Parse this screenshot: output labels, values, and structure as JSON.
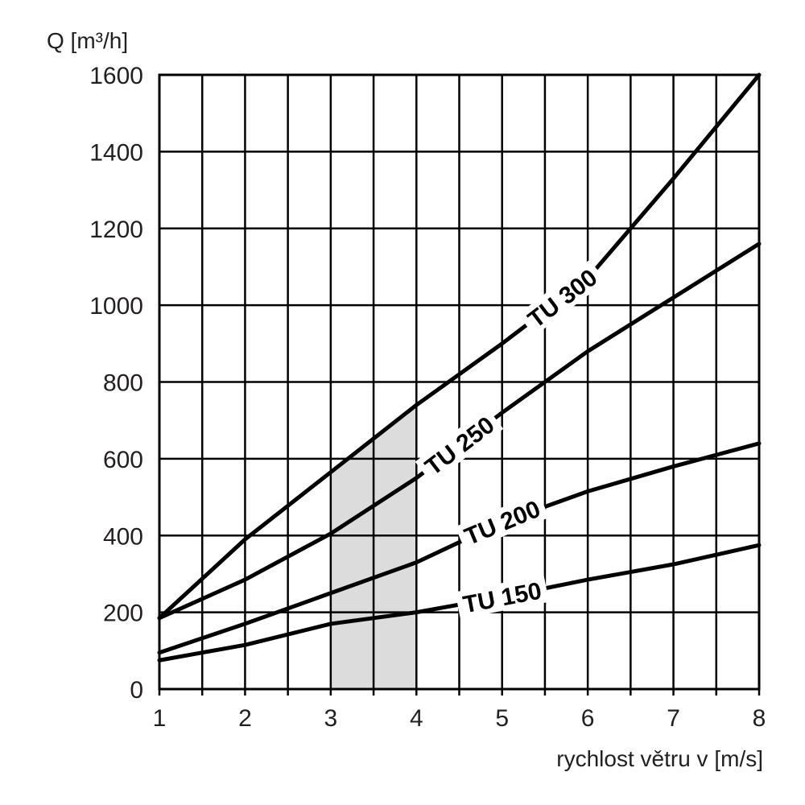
{
  "chart_data": {
    "type": "line",
    "ylabel": "Q [m³/h]",
    "xlabel": "rychlost větru v [m/s]",
    "xlim": [
      1,
      8
    ],
    "ylim": [
      0,
      1600
    ],
    "x_ticks": [
      "1",
      "2",
      "3",
      "4",
      "5",
      "6",
      "7",
      "8"
    ],
    "y_ticks": [
      "0",
      "200",
      "400",
      "600",
      "800",
      "1000",
      "1200",
      "1400",
      "1600"
    ],
    "grid": true,
    "x_gridlines_step": 0.5,
    "y_gridlines_step": 200,
    "highlight_band": {
      "x_from": 3,
      "x_to": 4,
      "color": "#dcdcdc"
    },
    "series": [
      {
        "name": "TU 300",
        "x": [
          1,
          2,
          3,
          4,
          5,
          6,
          7,
          8
        ],
        "values": [
          185,
          390,
          565,
          740,
          900,
          1070,
          1330,
          1600
        ],
        "label_at_x": 5.7
      },
      {
        "name": "TU 250",
        "x": [
          1,
          2,
          3,
          4,
          5,
          6,
          7,
          8
        ],
        "values": [
          185,
          285,
          405,
          550,
          720,
          880,
          1020,
          1160
        ],
        "label_at_x": 4.5
      },
      {
        "name": "TU 200",
        "x": [
          1,
          2,
          3,
          4,
          5,
          6,
          7,
          8
        ],
        "values": [
          95,
          170,
          250,
          330,
          435,
          515,
          580,
          640
        ],
        "label_at_x": 5
      },
      {
        "name": "TU 150",
        "x": [
          1,
          2,
          3,
          4,
          5,
          6,
          7,
          8
        ],
        "values": [
          75,
          115,
          170,
          200,
          240,
          285,
          325,
          375
        ],
        "label_at_x": 5
      }
    ]
  }
}
